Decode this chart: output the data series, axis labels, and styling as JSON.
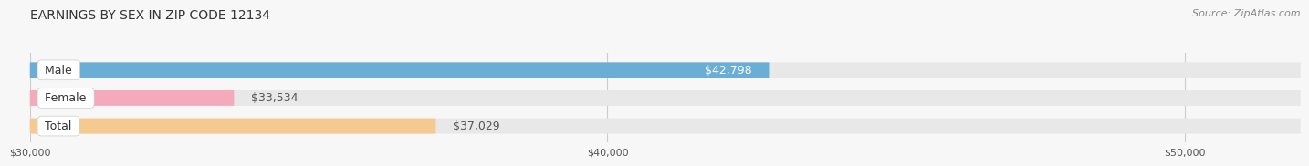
{
  "title": "EARNINGS BY SEX IN ZIP CODE 12134",
  "source": "Source: ZipAtlas.com",
  "categories": [
    "Male",
    "Female",
    "Total"
  ],
  "values": [
    42798,
    33534,
    37029
  ],
  "value_labels": [
    "$42,798",
    "$33,534",
    "$37,029"
  ],
  "bar_colors": [
    "#6aaed6",
    "#f4a9bc",
    "#f5c990"
  ],
  "bar_bg_color": "#e8e8e8",
  "bg_color": "#f7f7f7",
  "xmin": 30000,
  "xmax": 52000,
  "xticks": [
    30000,
    40000,
    50000
  ],
  "xtick_labels": [
    "$30,000",
    "$40,000",
    "$50,000"
  ],
  "title_fontsize": 10,
  "source_fontsize": 8,
  "bar_label_fontsize": 9,
  "category_fontsize": 9,
  "male_label_color": "#ffffff",
  "other_label_color": "#555555"
}
